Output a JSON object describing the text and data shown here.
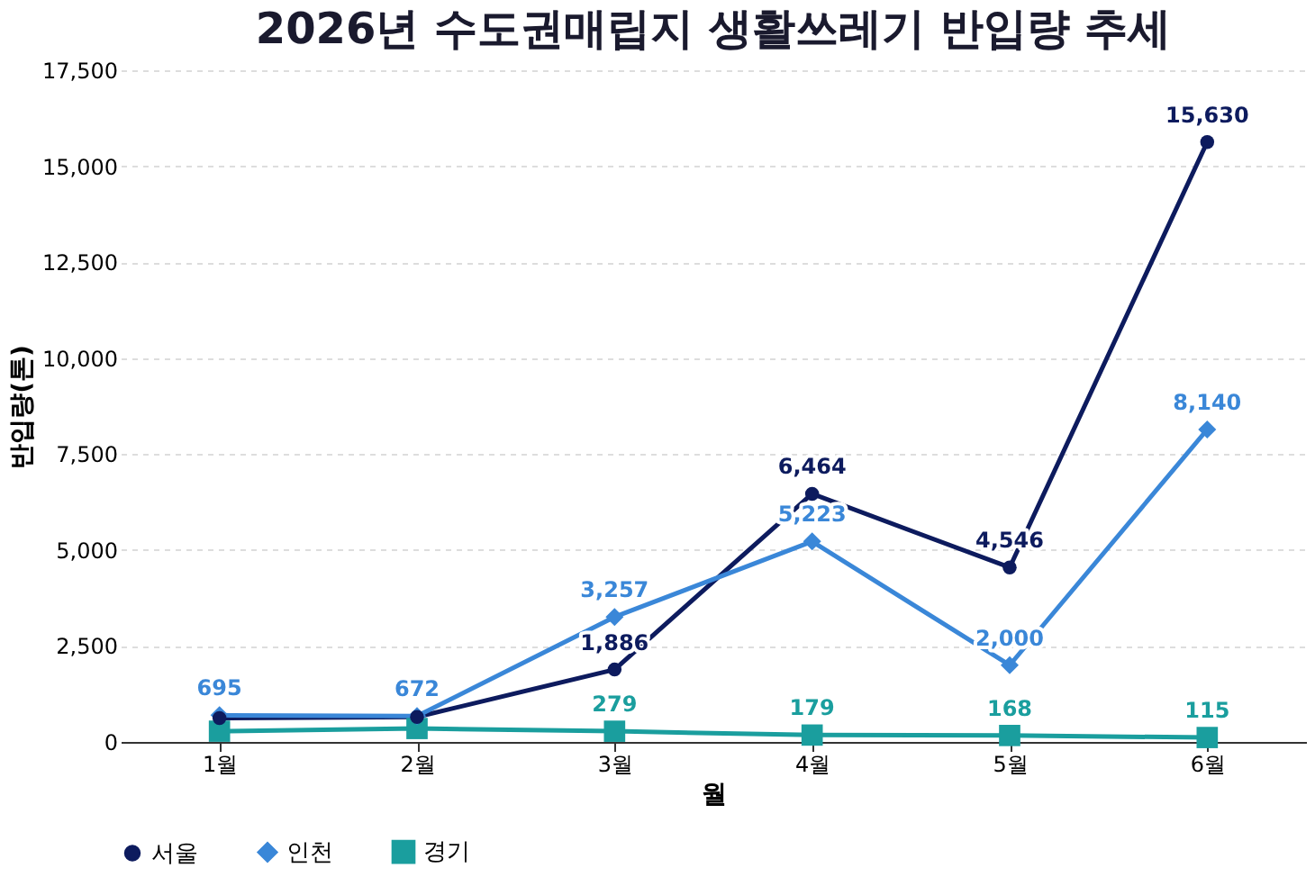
{
  "chart_data": {
    "type": "line",
    "title": "2026년 수도권매립지 생활쓰레기 반입량 추세",
    "xlabel": "월",
    "ylabel": "반입량(톤)",
    "categories": [
      "1월",
      "2월",
      "3월",
      "4월",
      "5월",
      "6월"
    ],
    "series": [
      {
        "name": "서울",
        "color": "#0d1b5e",
        "marker": "circle",
        "values": [
          620,
          650,
          1886,
          6464,
          4546,
          15630
        ],
        "value_labels": [
          null,
          null,
          "1,886",
          "6,464",
          "4,546",
          "15,630"
        ]
      },
      {
        "name": "인천",
        "color": "#3a87d8",
        "marker": "diamond",
        "values": [
          695,
          672,
          3257,
          5223,
          2000,
          8140
        ],
        "value_labels": [
          "695",
          "672",
          "3,257",
          "5,223",
          "2,000",
          "8,140"
        ]
      },
      {
        "name": "경기",
        "color": "#1a9e9e",
        "marker": "square",
        "values": [
          280,
          350,
          279,
          179,
          168,
          115
        ],
        "value_labels": [
          null,
          null,
          "279",
          "179",
          "168",
          "115"
        ]
      }
    ],
    "ylim": [
      0,
      17500
    ],
    "yticks": [
      0,
      {
        "value": 2500,
        "label": "2,500"
      },
      {
        "value": 5000,
        "label": "5,000"
      },
      {
        "value": 7500,
        "label": "7,500"
      },
      {
        "value": 10000,
        "label": "10,000"
      },
      {
        "value": 12500,
        "label": "12,500"
      },
      {
        "value": 15000,
        "label": "15,000"
      },
      {
        "value": 17500,
        "label": "17,500"
      }
    ],
    "grid": "y",
    "legend": "bottom",
    "line_style": "solid"
  }
}
